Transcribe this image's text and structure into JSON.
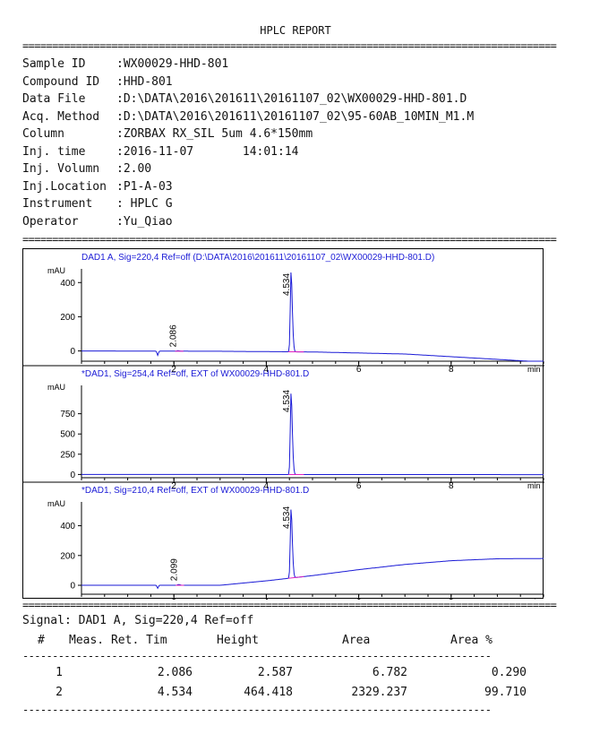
{
  "report": {
    "title": "HPLC REPORT",
    "separator_double": "==========================================================================================",
    "separator_single": "-------------------------------------------------------------------------------"
  },
  "sample_info": [
    {
      "label": "Sample ID",
      "value": ":WX00029-HHD-801"
    },
    {
      "label": "Compound ID",
      "value": ":HHD-801"
    },
    {
      "label": "Data File",
      "value": ":D:\\DATA\\2016\\201611\\20161107_02\\WX00029-HHD-801.D"
    },
    {
      "label": "Acq. Method",
      "value": ":D:\\DATA\\2016\\201611\\20161107_02\\95-60AB_10MIN_M1.M"
    },
    {
      "label": "Column",
      "value": ":ZORBAX RX_SIL 5um 4.6*150mm"
    },
    {
      "label": "Inj. time",
      "value": ":2016-11-07       14:01:14"
    },
    {
      "label": "Inj. Volumn",
      "value": ":2.00"
    },
    {
      "label": "Inj.Location",
      "value": ":P1-A-03"
    },
    {
      "label": "Instrument",
      "value": ": HPLC G"
    },
    {
      "label": "Operator",
      "value": ":Yu_Qiao"
    }
  ],
  "chart_data": [
    {
      "type": "line",
      "title": "DAD1 A, Sig=220,4 Ref=off (D:\\DATA\\2016\\201611\\20161107_02\\WX00029-HHD-801.D)",
      "ylabel": "mAU",
      "xlabel": "min",
      "xlim": [
        0,
        10
      ],
      "ylim": [
        -60,
        480
      ],
      "yticks": [
        0,
        200,
        400
      ],
      "xticks": [
        2,
        4,
        6,
        8
      ],
      "colors": {
        "trace": "#1a1ad6",
        "baseline": "#e020c0",
        "title": "#1a1ad6"
      },
      "baseline": [
        [
          0,
          0
        ],
        [
          3,
          -2
        ],
        [
          5,
          -6
        ],
        [
          7,
          -18
        ],
        [
          10,
          -65
        ]
      ],
      "peaks": [
        {
          "rt": 2.086,
          "label": "2.086",
          "height": 2.587
        },
        {
          "rt": 4.534,
          "label": "4.534",
          "height": 464.418
        }
      ],
      "dips": [
        {
          "x": 1.65,
          "depth": -25
        }
      ]
    },
    {
      "type": "line",
      "title": "*DAD1, Sig=254,4 Ref=off, EXT of WX00029-HHD-801.D",
      "ylabel": "mAU",
      "xlabel": "min",
      "xlim": [
        0,
        10
      ],
      "ylim": [
        -40,
        1100
      ],
      "yticks": [
        0,
        250,
        500,
        750
      ],
      "xticks": [
        2,
        4,
        6,
        8
      ],
      "colors": {
        "trace": "#1a1ad6",
        "baseline": "#e020c0",
        "title": "#1a1ad6"
      },
      "baseline": [
        [
          0,
          0
        ],
        [
          10,
          -2
        ]
      ],
      "peaks": [
        {
          "rt": 4.534,
          "label": "4.534",
          "height": 1000
        }
      ],
      "dips": []
    },
    {
      "type": "line",
      "title": "*DAD1, Sig=210,4 Ref=off, EXT of WX00029-HHD-801.D",
      "ylabel": "mAU",
      "xlabel": "min",
      "xlim": [
        0,
        10
      ],
      "ylim": [
        -60,
        560
      ],
      "yticks": [
        0,
        200,
        400
      ],
      "xticks": [
        2,
        4,
        6,
        8
      ],
      "colors": {
        "trace": "#1a1ad6",
        "baseline": "#e020c0",
        "title": "#1a1ad6"
      },
      "baseline": [
        [
          0,
          0
        ],
        [
          3,
          0
        ],
        [
          4,
          30
        ],
        [
          5,
          65
        ],
        [
          6,
          105
        ],
        [
          7,
          140
        ],
        [
          8,
          165
        ],
        [
          9,
          178
        ],
        [
          10,
          180
        ]
      ],
      "peaks": [
        {
          "rt": 2.099,
          "label": "2.099",
          "height": 5
        },
        {
          "rt": 4.534,
          "label": "4.534",
          "height": 460
        }
      ],
      "dips": [
        {
          "x": 1.65,
          "depth": -20
        }
      ]
    }
  ],
  "results": {
    "signal_line": "Signal: DAD1 A, Sig=220,4 Ref=off",
    "headers": [
      "#",
      "Meas. Ret. Tim",
      "Height",
      "Area",
      "Area %"
    ],
    "rows": [
      {
        "num": "1",
        "rt": "2.086",
        "height": "2.587",
        "area": "6.782",
        "area_pct": "0.290"
      },
      {
        "num": "2",
        "rt": "4.534",
        "height": "464.418",
        "area": "2329.237",
        "area_pct": "99.710"
      }
    ]
  }
}
